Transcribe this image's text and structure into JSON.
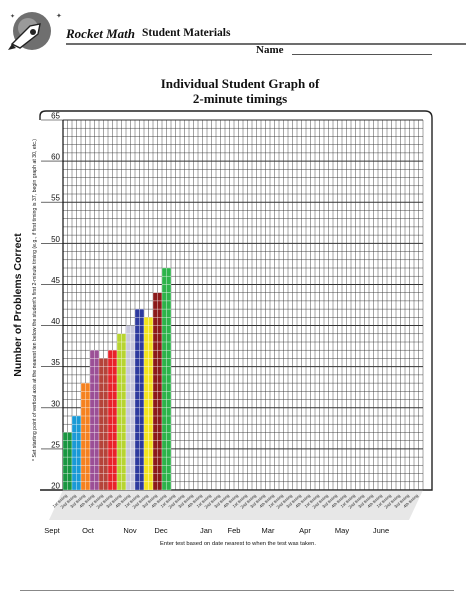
{
  "header": {
    "brand": "Rocket Math",
    "title": "Student Materials",
    "name_label": "Name"
  },
  "colors": {
    "header_line": "#6d6d6d",
    "grid": "#333333",
    "label_band": "#d4d4d4",
    "month_tint": "#e2e2e2"
  },
  "chart_data": {
    "type": "bar",
    "title_line1": "Individual Student Graph of",
    "title_line2": "2-minute timings",
    "ylabel": "Number of Problems Correct",
    "ylim": [
      20,
      65
    ],
    "yticks": [
      20,
      25,
      30,
      35,
      40,
      45,
      50,
      55,
      60,
      65
    ],
    "grid": true,
    "side_note": "* Set starting point of vertical axis at the nearest ten below the student's first 2-minute timing (e.g., if first timing is 37, begin graph at 30, etc.)",
    "xlabel": "Enter test based on date nearest to when the test was taken.",
    "months": [
      "Sept",
      "Oct",
      "Nov",
      "Dec",
      "Jan",
      "Feb",
      "Mar",
      "Apr",
      "May",
      "June"
    ],
    "slot_labels": [
      "1st timing",
      "2nd timing",
      "3rd timing",
      "4th timing"
    ],
    "bars": [
      {
        "value": 27,
        "color": "#1a9641"
      },
      {
        "value": 29,
        "color": "#1a9ad6"
      },
      {
        "value": 33,
        "color": "#f58220"
      },
      {
        "value": 37,
        "color": "#9b4f96"
      },
      {
        "value": 36,
        "color": "#b5443a"
      },
      {
        "value": 37,
        "color": "#e8232a"
      },
      {
        "value": 39,
        "color": "#b7d432"
      },
      {
        "value": 40,
        "color": "#c8c8dc"
      },
      {
        "value": 42,
        "color": "#2e3a9e"
      },
      {
        "value": 41,
        "color": "#f2e31e"
      },
      {
        "value": 44,
        "color": "#8b1a1a"
      },
      {
        "value": 47,
        "color": "#2db34a"
      }
    ]
  }
}
